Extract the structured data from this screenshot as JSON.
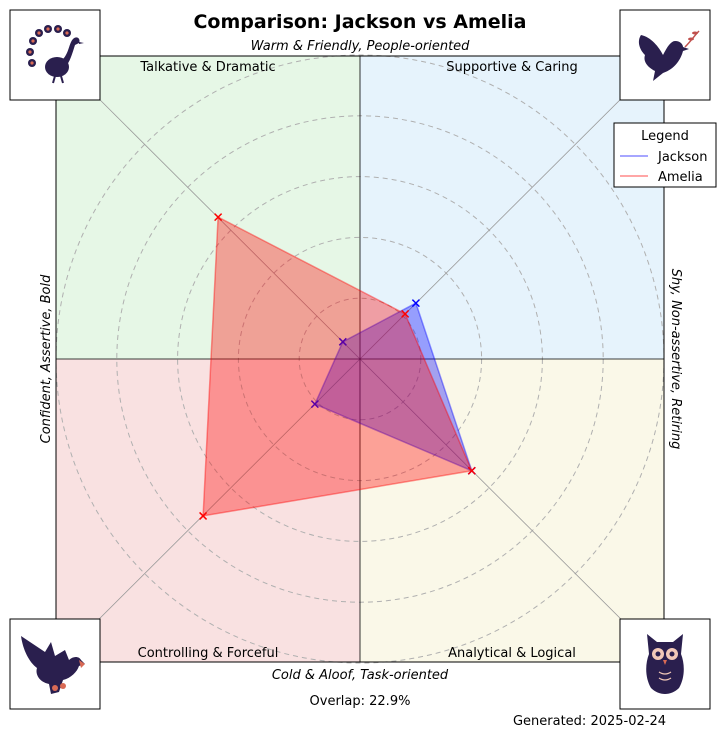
{
  "chart_data": {
    "type": "radar",
    "title": "Comparison: Jackson vs Amelia",
    "top_axis_label": "Warm & Friendly, People-oriented",
    "bottom_axis_label": "Cold & Aloof, Task-oriented",
    "left_axis_label": "Confident, Assertive, Bold",
    "right_axis_label": "Shy, Non-assertive, Retiring",
    "quadrants": [
      {
        "name": "Talkative & Dramatic",
        "position": "top-left",
        "color": "#e6f7e6"
      },
      {
        "name": "Supportive & Caring",
        "position": "top-right",
        "color": "#e6f3fc"
      },
      {
        "name": "Controlling & Forceful",
        "position": "bottom-left",
        "color": "#f9e1e1"
      },
      {
        "name": "Analytical & Logical",
        "position": "bottom-right",
        "color": "#faf8e8"
      }
    ],
    "axes": [
      "Supportive & Caring",
      "Talkative & Dramatic",
      "Controlling & Forceful",
      "Analytical & Logical"
    ],
    "axis_angles_deg": [
      45,
      135,
      225,
      315
    ],
    "rlim": [
      0,
      10
    ],
    "grid_rings": [
      2,
      4,
      6,
      8,
      10
    ],
    "series": [
      {
        "name": "Jackson",
        "color": "#0000ff",
        "values": [
          2.6,
          0.8,
          2.1,
          5.2
        ]
      },
      {
        "name": "Amelia",
        "color": "#ff0000",
        "values": [
          2.1,
          6.6,
          7.3,
          5.2
        ]
      }
    ],
    "legend": {
      "title": "Legend",
      "position": "top-right"
    },
    "annotations": [
      "Overlap: 22.9%",
      "Generated: 2025-02-24"
    ]
  },
  "icons": {
    "top_left": "peacock-icon",
    "top_right": "dove-icon",
    "bottom_left": "eagle-icon",
    "bottom_right": "owl-icon"
  },
  "icon_color": "#2a1f4e"
}
